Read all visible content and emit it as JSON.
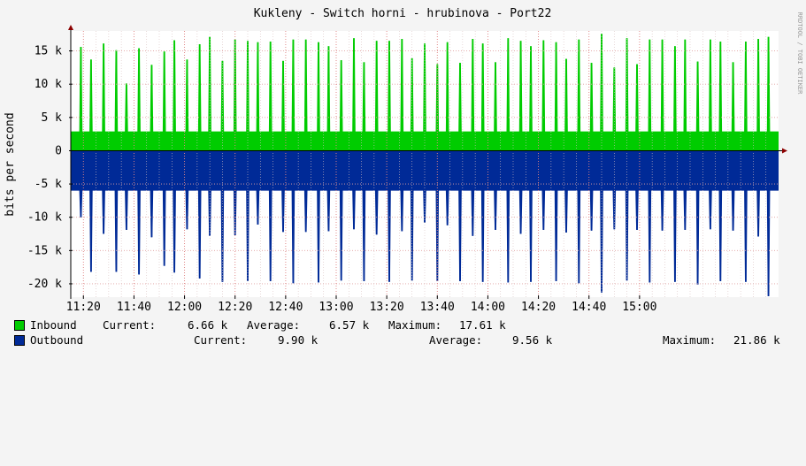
{
  "chart_data": {
    "type": "area",
    "title": "Kukleny - Switch horni - hrubinova - Port22",
    "ylabel": "bits per second",
    "watermark": "RRDTOOL / TOBI OETIKER",
    "ylim": [
      -22000,
      18000
    ],
    "x_range": [
      "11:15",
      "15:55"
    ],
    "x_ticks": [
      "11:20",
      "11:40",
      "12:00",
      "12:20",
      "12:40",
      "13:00",
      "13:20",
      "13:40",
      "14:00",
      "14:20",
      "14:40",
      "15:00"
    ],
    "y_ticks": [
      {
        "value": 15000,
        "label": "15 k"
      },
      {
        "value": 10000,
        "label": "10 k"
      },
      {
        "value": 5000,
        "label": "5 k"
      },
      {
        "value": 0,
        "label": "0"
      },
      {
        "value": -5000,
        "label": "-5 k"
      },
      {
        "value": -10000,
        "label": "-10 k"
      },
      {
        "value": -15000,
        "label": "-15 k"
      },
      {
        "value": -20000,
        "label": "-20 k"
      }
    ],
    "grid": true,
    "series": [
      {
        "name": "Inbound",
        "color": "#00cc00",
        "baseline": 2900,
        "peak_times": [
          "11:19",
          "11:23",
          "11:28",
          "11:33",
          "11:37",
          "11:42",
          "11:47",
          "11:52",
          "11:56",
          "12:01",
          "12:06",
          "12:10",
          "12:15",
          "12:20",
          "12:25",
          "12:29",
          "12:34",
          "12:39",
          "12:43",
          "12:48",
          "12:53",
          "12:57",
          "13:02",
          "13:07",
          "13:11",
          "13:16",
          "13:21",
          "13:26",
          "13:30",
          "13:35",
          "13:40",
          "13:44",
          "13:49",
          "13:54",
          "13:58",
          "14:03",
          "14:08",
          "14:13",
          "14:17",
          "14:22",
          "14:27",
          "14:31",
          "14:36",
          "14:41",
          "14:45",
          "14:50",
          "14:55",
          "14:59",
          "15:04",
          "15:09",
          "15:14",
          "15:18",
          "15:23",
          "15:28",
          "15:32",
          "15:37",
          "15:42",
          "15:47",
          "15:51"
        ],
        "peak_values": [
          15600,
          13700,
          16100,
          15100,
          10100,
          15400,
          12900,
          14900,
          16600,
          13700,
          16000,
          17100,
          13500,
          16700,
          16500,
          16300,
          16400,
          13500,
          16700,
          16700,
          16300,
          15700,
          13600,
          16900,
          13300,
          16500,
          16500,
          16800,
          13900,
          16100,
          13000,
          16300,
          13200,
          16800,
          16100,
          13300,
          16900,
          16500,
          15700,
          16600,
          16300,
          13800,
          16700,
          13200,
          17600,
          12500,
          16900,
          13000,
          16700,
          16700,
          15700,
          16700,
          13400,
          16700,
          16400,
          13300,
          16400,
          16800,
          17100
        ]
      },
      {
        "name": "Outbound",
        "color": "#002a97",
        "baseline": -6000,
        "trough_times": [
          "11:19",
          "11:23",
          "11:28",
          "11:33",
          "11:37",
          "11:42",
          "11:47",
          "11:52",
          "11:56",
          "12:01",
          "12:06",
          "12:10",
          "12:15",
          "12:20",
          "12:25",
          "12:29",
          "12:34",
          "12:39",
          "12:43",
          "12:48",
          "12:53",
          "12:57",
          "13:02",
          "13:07",
          "13:11",
          "13:16",
          "13:21",
          "13:26",
          "13:30",
          "13:35",
          "13:40",
          "13:44",
          "13:49",
          "13:54",
          "13:58",
          "14:03",
          "14:08",
          "14:13",
          "14:17",
          "14:22",
          "14:27",
          "14:31",
          "14:36",
          "14:41",
          "14:45",
          "14:50",
          "14:55",
          "14:59",
          "15:04",
          "15:09",
          "15:14",
          "15:18",
          "15:23",
          "15:28",
          "15:32",
          "15:37",
          "15:42",
          "15:47",
          "15:51"
        ],
        "trough_values": [
          -10000,
          -18200,
          -12500,
          -18200,
          -11900,
          -18600,
          -13000,
          -17300,
          -18300,
          -11800,
          -19200,
          -12800,
          -19700,
          -12700,
          -19600,
          -11100,
          -19600,
          -12200,
          -19900,
          -12200,
          -19800,
          -12100,
          -19500,
          -11800,
          -19600,
          -12600,
          -19700,
          -12100,
          -19500,
          -10800,
          -19600,
          -11200,
          -19600,
          -12800,
          -19700,
          -11900,
          -19800,
          -12500,
          -19700,
          -11900,
          -19600,
          -12300,
          -19900,
          -12000,
          -21300,
          -11800,
          -19500,
          -11900,
          -19800,
          -12000,
          -19700,
          -11900,
          -20100,
          -11800,
          -19600,
          -12000,
          -19700,
          -12900,
          -21860
        ]
      }
    ]
  },
  "legend": [
    {
      "name": "Inbound",
      "color": "#00cc00",
      "current_label": "Current:",
      "current_value": "6.66 k",
      "average_label": "Average:",
      "average_value": "6.57 k",
      "maximum_label": "Maximum:",
      "maximum_value": "17.61 k"
    },
    {
      "name": "Outbound",
      "color": "#002a97",
      "current_label": "Current:",
      "current_value": "9.90 k",
      "average_label": "Average:",
      "average_value": "9.56 k",
      "maximum_label": "Maximum:",
      "maximum_value": "21.86 k"
    }
  ]
}
